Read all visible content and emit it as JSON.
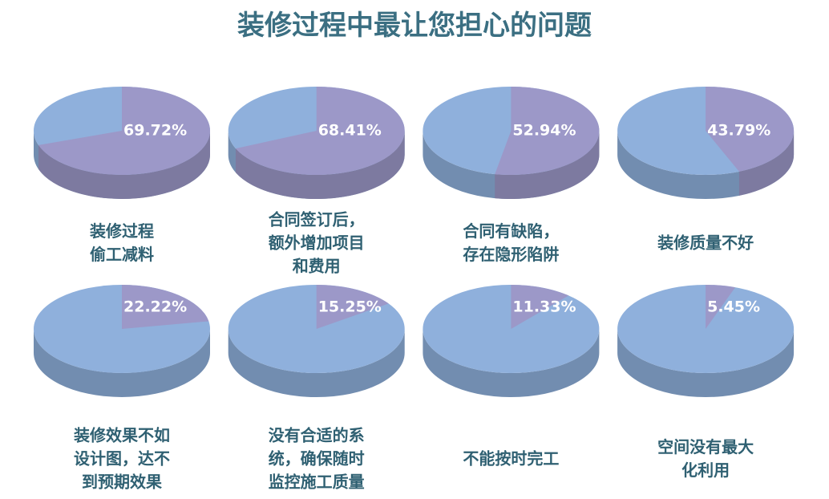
{
  "title": "装修过程中最让您担心的问题",
  "chart_data": [
    {
      "type": "pie",
      "title": "装修过程\n偷工减料",
      "values": [
        69.72
      ],
      "value_labels": [
        "69.72%"
      ],
      "color": "#9c98c8",
      "base_color": "#8fb0dc"
    },
    {
      "type": "pie",
      "title": "合同签订后，\n额外增加项目\n和费用",
      "values": [
        68.41
      ],
      "value_labels": [
        "68.41%"
      ],
      "color": "#9c98c8",
      "base_color": "#8fb0dc"
    },
    {
      "type": "pie",
      "title": "合同有缺陷，\n存在隐形陷阱",
      "values": [
        52.94
      ],
      "value_labels": [
        "52.94%"
      ],
      "color": "#9c98c8",
      "base_color": "#8fb0dc"
    },
    {
      "type": "pie",
      "title": "装修质量不好",
      "values": [
        43.79
      ],
      "value_labels": [
        "43.79%"
      ],
      "color": "#9c98c8",
      "base_color": "#8fb0dc"
    },
    {
      "type": "pie",
      "title": "装修效果不如\n设计图，达不\n到预期效果",
      "values": [
        22.22
      ],
      "value_labels": [
        "22.22%"
      ],
      "color": "#9c98c8",
      "base_color": "#8fb0dc"
    },
    {
      "type": "pie",
      "title": "没有合适的系\n统，确保随时\n监控施工质量",
      "values": [
        15.25
      ],
      "value_labels": [
        "15.25%"
      ],
      "color": "#9c98c8",
      "base_color": "#8fb0dc"
    },
    {
      "type": "pie",
      "title": "不能按时完工",
      "values": [
        11.33
      ],
      "value_labels": [
        "11.33%"
      ],
      "color": "#9c98c8",
      "base_color": "#8fb0dc"
    },
    {
      "type": "pie",
      "title": "空间没有最大\n化利用",
      "values": [
        5.45
      ],
      "value_labels": [
        "5.45%"
      ],
      "color": "#9c98c8",
      "base_color": "#8fb0dc"
    }
  ]
}
